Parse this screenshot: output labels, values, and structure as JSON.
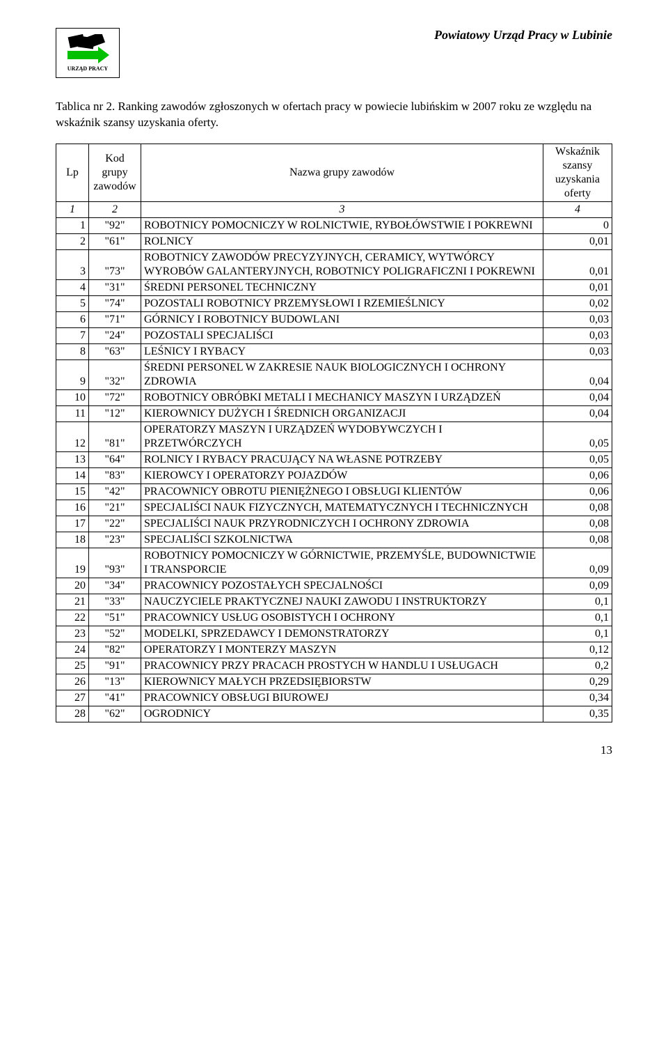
{
  "header": {
    "logo_label": "URZĄD PRACY",
    "title": "Powiatowy Urząd Pracy w Lubinie"
  },
  "caption": "Tablica nr 2. Ranking zawodów zgłoszonych w ofertach pracy w powiecie lubińskim w 2007 roku ze względu na wskaźnik szansy uzyskania oferty.",
  "table": {
    "columns": {
      "lp": "Lp",
      "kod": "Kod grupy zawodów",
      "nazwa": "Nazwa grupy zawodów",
      "wsk": "Wskaźnik szansy uzyskania oferty"
    },
    "subheader": [
      "1",
      "2",
      "3",
      "4"
    ],
    "rows": [
      {
        "lp": "1",
        "kod": "\"92\"",
        "nazwa": "ROBOTNICY POMOCNICZY W ROLNICTWIE, RYBOŁÓWSTWIE I POKREWNI",
        "wsk": "0"
      },
      {
        "lp": "2",
        "kod": "\"61\"",
        "nazwa": "ROLNICY",
        "wsk": "0,01"
      },
      {
        "lp": "3",
        "kod": "\"73\"",
        "nazwa": "ROBOTNICY ZAWODÓW PRECYZYJNYCH, CERAMICY, WYTWÓRCY WYROBÓW GALANTERYJNYCH, ROBOTNICY POLIGRAFICZNI I POKREWNI",
        "wsk": "0,01"
      },
      {
        "lp": "4",
        "kod": "\"31\"",
        "nazwa": "ŚREDNI PERSONEL TECHNICZNY",
        "wsk": "0,01"
      },
      {
        "lp": "5",
        "kod": "\"74\"",
        "nazwa": "POZOSTALI ROBOTNICY PRZEMYSŁOWI I RZEMIEŚLNICY",
        "wsk": "0,02"
      },
      {
        "lp": "6",
        "kod": "\"71\"",
        "nazwa": "GÓRNICY I ROBOTNICY BUDOWLANI",
        "wsk": "0,03"
      },
      {
        "lp": "7",
        "kod": "\"24\"",
        "nazwa": "POZOSTALI SPECJALIŚCI",
        "wsk": "0,03"
      },
      {
        "lp": "8",
        "kod": "\"63\"",
        "nazwa": "LEŚNICY I RYBACY",
        "wsk": "0,03"
      },
      {
        "lp": "9",
        "kod": "\"32\"",
        "nazwa": "ŚREDNI PERSONEL W ZAKRESIE NAUK BIOLOGICZNYCH I OCHRONY ZDROWIA",
        "wsk": "0,04"
      },
      {
        "lp": "10",
        "kod": "\"72\"",
        "nazwa": "ROBOTNICY OBRÓBKI METALI I MECHANICY MASZYN I URZĄDZEŃ",
        "wsk": "0,04"
      },
      {
        "lp": "11",
        "kod": "\"12\"",
        "nazwa": "KIEROWNICY DUŻYCH I ŚREDNICH ORGANIZACJI",
        "wsk": "0,04"
      },
      {
        "lp": "12",
        "kod": "\"81\"",
        "nazwa": "OPERATORZY MASZYN I URZĄDZEŃ WYDOBYWCZYCH I PRZETWÓRCZYCH",
        "wsk": "0,05"
      },
      {
        "lp": "13",
        "kod": "\"64\"",
        "nazwa": "ROLNICY I RYBACY PRACUJĄCY NA WŁASNE POTRZEBY",
        "wsk": "0,05"
      },
      {
        "lp": "14",
        "kod": "\"83\"",
        "nazwa": "KIEROWCY I OPERATORZY POJAZDÓW",
        "wsk": "0,06"
      },
      {
        "lp": "15",
        "kod": "\"42\"",
        "nazwa": "PRACOWNICY OBROTU PIENIĘŻNEGO I OBSŁUGI KLIENTÓW",
        "wsk": "0,06"
      },
      {
        "lp": "16",
        "kod": "\"21\"",
        "nazwa": "SPECJALIŚCI NAUK FIZYCZNYCH, MATEMATYCZNYCH I TECHNICZNYCH",
        "wsk": "0,08"
      },
      {
        "lp": "17",
        "kod": "\"22\"",
        "nazwa": "SPECJALIŚCI NAUK PRZYRODNICZYCH I OCHRONY ZDROWIA",
        "wsk": "0,08"
      },
      {
        "lp": "18",
        "kod": "\"23\"",
        "nazwa": "SPECJALIŚCI SZKOLNICTWA",
        "wsk": "0,08"
      },
      {
        "lp": "19",
        "kod": "\"93\"",
        "nazwa": "ROBOTNICY POMOCNICZY W GÓRNICTWIE, PRZEMYŚLE, BUDOWNICTWIE I TRANSPORCIE",
        "wsk": "0,09"
      },
      {
        "lp": "20",
        "kod": "\"34\"",
        "nazwa": "PRACOWNICY POZOSTAŁYCH SPECJALNOŚCI",
        "wsk": "0,09"
      },
      {
        "lp": "21",
        "kod": "\"33\"",
        "nazwa": "NAUCZYCIELE PRAKTYCZNEJ NAUKI ZAWODU I INSTRUKTORZY",
        "wsk": "0,1"
      },
      {
        "lp": "22",
        "kod": "\"51\"",
        "nazwa": "PRACOWNICY USŁUG OSOBISTYCH I OCHRONY",
        "wsk": "0,1"
      },
      {
        "lp": "23",
        "kod": "\"52\"",
        "nazwa": "MODELKI, SPRZEDAWCY I DEMONSTRATORZY",
        "wsk": "0,1"
      },
      {
        "lp": "24",
        "kod": "\"82\"",
        "nazwa": "OPERATORZY I MONTERZY MASZYN",
        "wsk": "0,12"
      },
      {
        "lp": "25",
        "kod": "\"91\"",
        "nazwa": "PRACOWNICY PRZY PRACACH PROSTYCH W HANDLU I USŁUGACH",
        "wsk": "0,2"
      },
      {
        "lp": "26",
        "kod": "\"13\"",
        "nazwa": "KIEROWNICY MAŁYCH PRZEDSIĘBIORSTW",
        "wsk": "0,29"
      },
      {
        "lp": "27",
        "kod": "\"41\"",
        "nazwa": "PRACOWNICY OBSŁUGI BIUROWEJ",
        "wsk": "0,34"
      },
      {
        "lp": "28",
        "kod": "\"62\"",
        "nazwa": "OGRODNICY",
        "wsk": "0,35"
      }
    ]
  },
  "page_number": "13",
  "colors": {
    "text": "#000000",
    "background": "#ffffff",
    "logo_arrow": "#00c000",
    "logo_shapes": "#000000"
  }
}
